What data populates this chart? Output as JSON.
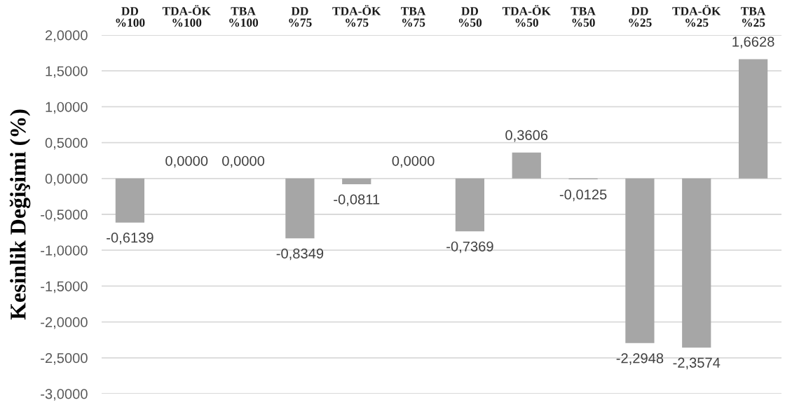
{
  "chart_data": {
    "type": "bar",
    "ylabel": "Kesinlik Değişimi (%)",
    "categories": [
      "DD\n%100",
      "TDA-ÖK\n%100",
      "TBA\n%100",
      "DD\n%75",
      "TDA-ÖK\n%75",
      "TBA\n%75",
      "DD\n%50",
      "TDA-ÖK\n%50",
      "TBA\n%50",
      "DD\n%25",
      "TDA-ÖK\n%25",
      "TBA\n%25"
    ],
    "values": [
      -0.6139,
      0,
      0,
      -0.8349,
      -0.0811,
      0,
      -0.7369,
      0.3606,
      -0.0125,
      -2.2948,
      -2.3574,
      1.6628
    ],
    "value_labels": [
      "-0,6139",
      "0,0000",
      "0,0000",
      "-0,8349",
      "-0,0811",
      "0,0000",
      "-0,7369",
      "0,3606",
      "-0,0125",
      "-2,2948",
      "-2,3574",
      "1,6628"
    ],
    "color": "#a6a6a6",
    "ylim": [
      -3,
      2
    ],
    "yticks": [
      {
        "value": 2,
        "label": "2,0000"
      },
      {
        "value": 1.5,
        "label": "1,5000"
      },
      {
        "value": 1,
        "label": "1,0000"
      },
      {
        "value": 0.5,
        "label": "0,5000"
      },
      {
        "value": 0,
        "label": "0,0000"
      },
      {
        "value": -0.5,
        "label": "-0,5000"
      },
      {
        "value": -1,
        "label": "-1,0000"
      },
      {
        "value": -1.5,
        "label": "-1,5000"
      },
      {
        "value": -2,
        "label": "-2,0000"
      },
      {
        "value": -2.5,
        "label": "-2,5000"
      },
      {
        "value": -3,
        "label": "-3,0000"
      }
    ],
    "grid": "y"
  }
}
